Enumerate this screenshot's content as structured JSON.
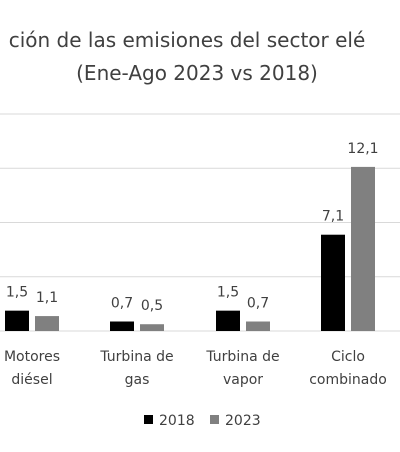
{
  "chart_data": {
    "type": "bar",
    "title_line1": "ción de las emisiones del sector elé",
    "title_line2": "(Ene-Ago 2023 vs 2018)",
    "categories": [
      [
        "Motores",
        "diésel"
      ],
      [
        "Turbina de",
        "gas"
      ],
      [
        "Turbina de",
        "vapor"
      ],
      [
        "Ciclo",
        "combinado"
      ]
    ],
    "series": [
      {
        "name": "2018",
        "color": "#000000",
        "values": [
          1.5,
          0.7,
          1.5,
          7.1
        ],
        "labels": [
          "1,5",
          "0,7",
          "1,5",
          "7,1"
        ]
      },
      {
        "name": "2023",
        "color": "#808080",
        "values": [
          1.1,
          0.5,
          0.7,
          12.1
        ],
        "labels": [
          "1,1",
          "0,5",
          "0,7",
          "12,1"
        ]
      }
    ],
    "ylim": [
      0,
      16
    ],
    "gridlines": [
      0,
      4,
      8,
      12,
      16
    ],
    "legend_position": "bottom",
    "grid": true
  }
}
